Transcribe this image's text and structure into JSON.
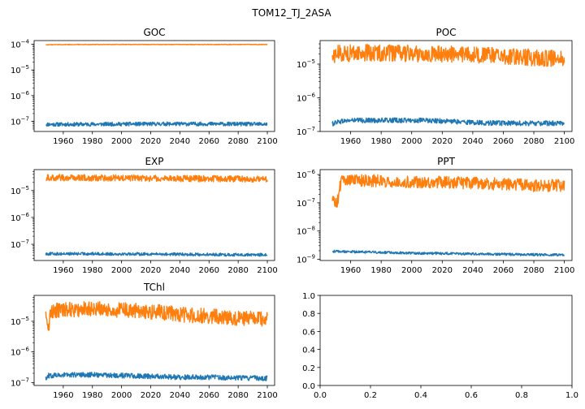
{
  "figure": {
    "title": "TOM12_TJ_2ASA"
  },
  "colors": {
    "series_1": "#1f77b4",
    "series_2": "#ff7f0e",
    "axes": "#000000"
  },
  "chart_data": [
    {
      "type": "line",
      "title": "GOC",
      "yscale": "log",
      "xlim": [
        1940,
        2105
      ],
      "ylim": [
        4e-08,
        0.00014
      ],
      "xticks": [
        {
          "value": 1960,
          "label": "1960"
        },
        {
          "value": 1980,
          "label": "1980"
        },
        {
          "value": 2000,
          "label": "2000"
        },
        {
          "value": 2020,
          "label": "2020"
        },
        {
          "value": 2040,
          "label": "2040"
        },
        {
          "value": 2060,
          "label": "2060"
        },
        {
          "value": 2080,
          "label": "2080"
        },
        {
          "value": 2100,
          "label": "2100"
        }
      ],
      "yticks": [
        {
          "value": 1e-07,
          "mant": "10",
          "exp": "−7"
        },
        {
          "value": 1e-06,
          "mant": "10",
          "exp": "−6"
        },
        {
          "value": 1e-05,
          "mant": "10",
          "exp": "−5"
        },
        {
          "value": 0.0001,
          "mant": "10",
          "exp": "−4"
        }
      ],
      "series": [
        {
          "color": "#1f77b4",
          "x": [
            1948,
            1970,
            2000,
            2030,
            2060,
            2080,
            2100
          ],
          "y": [
            7.5e-08,
            7.5e-08,
            7.7e-08,
            7.8e-08,
            7.8e-08,
            7.7e-08,
            7.6e-08
          ],
          "band": [
            0.85,
            1.2
          ]
        },
        {
          "color": "#ff7f0e",
          "x": [
            1948,
            1955,
            1980,
            2020,
            2060,
            2100
          ],
          "y": [
            9.6e-05,
            9.8e-05,
            9.9e-05,
            9.9e-05,
            9.9e-05,
            9.9e-05
          ],
          "band": [
            0.97,
            1.02
          ]
        }
      ]
    },
    {
      "type": "line",
      "title": "POC",
      "yscale": "log",
      "xlim": [
        1940,
        2105
      ],
      "ylim": [
        1e-07,
        5e-05
      ],
      "xticks": [
        {
          "value": 1960,
          "label": "1960"
        },
        {
          "value": 1980,
          "label": "1980"
        },
        {
          "value": 2000,
          "label": "2000"
        },
        {
          "value": 2020,
          "label": "2020"
        },
        {
          "value": 2040,
          "label": "2040"
        },
        {
          "value": 2060,
          "label": "2060"
        },
        {
          "value": 2080,
          "label": "2080"
        },
        {
          "value": 2100,
          "label": "2100"
        }
      ],
      "yticks": [
        {
          "value": 1e-07,
          "mant": "10",
          "exp": "−7"
        },
        {
          "value": 1e-06,
          "mant": "10",
          "exp": "−6"
        },
        {
          "value": 1e-05,
          "mant": "10",
          "exp": "−5"
        }
      ],
      "series": [
        {
          "color": "#1f77b4",
          "x": [
            1948,
            1951,
            1960,
            1980,
            2000,
            2020,
            2040,
            2060,
            2080,
            2100
          ],
          "y": [
            1.7e-07,
            2e-07,
            2.2e-07,
            2.2e-07,
            2.2e-07,
            2.1e-07,
            1.9e-07,
            1.8e-07,
            1.8e-07,
            1.8e-07
          ],
          "band": [
            0.82,
            1.15
          ]
        },
        {
          "color": "#ff7f0e",
          "x": [
            1948,
            1951,
            1970,
            2000,
            2030,
            2060,
            2080,
            2100
          ],
          "y": [
            1.6e-05,
            2.1e-05,
            2.2e-05,
            2.1e-05,
            2e-05,
            1.8e-05,
            1.6e-05,
            1.5e-05
          ],
          "band": [
            0.55,
            1.75
          ]
        }
      ]
    },
    {
      "type": "line",
      "title": "EXP",
      "yscale": "log",
      "xlim": [
        1940,
        2105
      ],
      "ylim": [
        2.5e-08,
        6e-05
      ],
      "xticks": [
        {
          "value": 1960,
          "label": "1960"
        },
        {
          "value": 1980,
          "label": "1980"
        },
        {
          "value": 2000,
          "label": "2000"
        },
        {
          "value": 2020,
          "label": "2020"
        },
        {
          "value": 2040,
          "label": "2040"
        },
        {
          "value": 2060,
          "label": "2060"
        },
        {
          "value": 2080,
          "label": "2080"
        },
        {
          "value": 2100,
          "label": "2100"
        }
      ],
      "yticks": [
        {
          "value": 1e-07,
          "mant": "10",
          "exp": "−7"
        },
        {
          "value": 1e-06,
          "mant": "10",
          "exp": "−6"
        },
        {
          "value": 1e-05,
          "mant": "10",
          "exp": "−5"
        }
      ],
      "series": [
        {
          "color": "#1f77b4",
          "x": [
            1948,
            1980,
            2020,
            2060,
            2100
          ],
          "y": [
            4.5e-08,
            4.5e-08,
            4.4e-08,
            4.2e-08,
            4.1e-08
          ],
          "band": [
            0.87,
            1.12
          ]
        },
        {
          "color": "#ff7f0e",
          "x": [
            1948,
            1980,
            2020,
            2060,
            2100
          ],
          "y": [
            3.2e-05,
            3.1e-05,
            3e-05,
            2.9e-05,
            2.8e-05
          ],
          "band": [
            0.72,
            1.25
          ]
        }
      ]
    },
    {
      "type": "line",
      "title": "PPT",
      "yscale": "log",
      "xlim": [
        1940,
        2105
      ],
      "ylim": [
        9e-10,
        1.5e-06
      ],
      "xticks": [
        {
          "value": 1960,
          "label": "1960"
        },
        {
          "value": 1980,
          "label": "1980"
        },
        {
          "value": 2000,
          "label": "2000"
        },
        {
          "value": 2020,
          "label": "2020"
        },
        {
          "value": 2040,
          "label": "2040"
        },
        {
          "value": 2060,
          "label": "2060"
        },
        {
          "value": 2080,
          "label": "2080"
        },
        {
          "value": 2100,
          "label": "2100"
        }
      ],
      "yticks": [
        {
          "value": 1e-09,
          "mant": "10",
          "exp": "−9"
        },
        {
          "value": 1e-08,
          "mant": "10",
          "exp": "−8"
        },
        {
          "value": 1e-07,
          "mant": "10",
          "exp": "−7"
        },
        {
          "value": 1e-06,
          "mant": "10",
          "exp": "−6"
        }
      ],
      "series": [
        {
          "color": "#1f77b4",
          "x": [
            1948,
            1960,
            1980,
            2000,
            2020,
            2040,
            2060,
            2080,
            2100
          ],
          "y": [
            1.9e-09,
            1.85e-09,
            1.75e-09,
            1.65e-09,
            1.6e-09,
            1.55e-09,
            1.5e-09,
            1.45e-09,
            1.45e-09
          ],
          "band": [
            0.9,
            1.1
          ]
        },
        {
          "color": "#ff7f0e",
          "x": [
            1948,
            1951,
            1952,
            1954,
            1960,
            1980,
            2000,
            2020,
            2040,
            2060,
            2080,
            2100
          ],
          "y": [
            1.4e-07,
            1.2e-07,
            1.5e-07,
            6.5e-07,
            7e-07,
            6.5e-07,
            6e-07,
            6e-07,
            5.5e-07,
            5e-07,
            4.5e-07,
            4.5e-07
          ],
          "band": [
            0.55,
            1.5
          ]
        }
      ]
    },
    {
      "type": "line",
      "title": "TChl",
      "yscale": "log",
      "xlim": [
        1940,
        2105
      ],
      "ylim": [
        8e-08,
        7e-05
      ],
      "xticks": [
        {
          "value": 1960,
          "label": "1960"
        },
        {
          "value": 1980,
          "label": "1980"
        },
        {
          "value": 2000,
          "label": "2000"
        },
        {
          "value": 2020,
          "label": "2020"
        },
        {
          "value": 2040,
          "label": "2040"
        },
        {
          "value": 2060,
          "label": "2060"
        },
        {
          "value": 2080,
          "label": "2080"
        },
        {
          "value": 2100,
          "label": "2100"
        }
      ],
      "yticks": [
        {
          "value": 1e-07,
          "mant": "10",
          "exp": "−7"
        },
        {
          "value": 1e-06,
          "mant": "10",
          "exp": "−6"
        },
        {
          "value": 1e-05,
          "mant": "10",
          "exp": "−5"
        }
      ],
      "series": [
        {
          "color": "#1f77b4",
          "x": [
            1948,
            1950,
            1960,
            1980,
            2000,
            2020,
            2040,
            2060,
            2080,
            2100
          ],
          "y": [
            1.4e-07,
            1.7e-07,
            1.8e-07,
            1.8e-07,
            1.7e-07,
            1.6e-07,
            1.5e-07,
            1.5e-07,
            1.4e-07,
            1.4e-07
          ],
          "band": [
            0.82,
            1.2
          ]
        },
        {
          "color": "#ff7f0e",
          "x": [
            1948,
            1950,
            1952,
            1960,
            1980,
            2000,
            2020,
            2040,
            2060,
            2080,
            2100
          ],
          "y": [
            1.5e-05,
            6e-06,
            2.2e-05,
            2.5e-05,
            2.6e-05,
            2.4e-05,
            2.1e-05,
            1.7e-05,
            1.5e-05,
            1.3e-05,
            1.2e-05
          ],
          "band": [
            0.55,
            1.75
          ]
        }
      ]
    },
    {
      "type": "line",
      "title": "",
      "yscale": "linear",
      "xlim": [
        0,
        1
      ],
      "ylim": [
        0,
        1
      ],
      "xticks": [
        {
          "value": 0,
          "label": "0.0"
        },
        {
          "value": 0.2,
          "label": "0.2"
        },
        {
          "value": 0.4,
          "label": "0.4"
        },
        {
          "value": 0.6,
          "label": "0.6"
        },
        {
          "value": 0.8,
          "label": "0.8"
        },
        {
          "value": 1,
          "label": "1.0"
        }
      ],
      "yticks": [
        {
          "value": 0,
          "label": "0.0"
        },
        {
          "value": 0.2,
          "label": "0.2"
        },
        {
          "value": 0.4,
          "label": "0.4"
        },
        {
          "value": 0.6,
          "label": "0.6"
        },
        {
          "value": 0.8,
          "label": "0.8"
        },
        {
          "value": 1,
          "label": "1.0"
        }
      ],
      "series": []
    }
  ]
}
